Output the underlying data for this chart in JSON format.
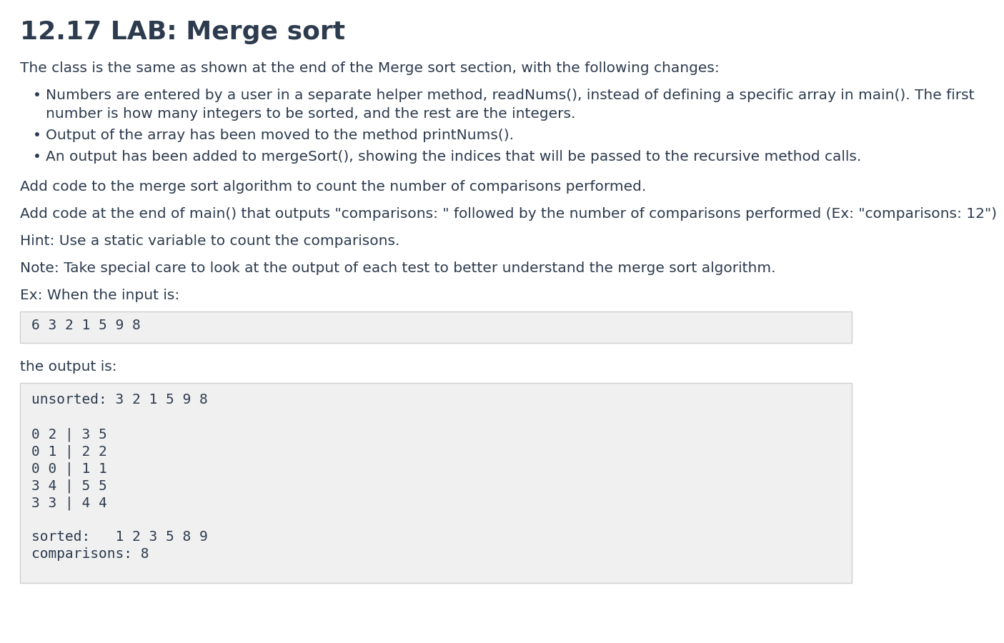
{
  "title": "12.17 LAB: Merge sort",
  "title_fontsize": 26,
  "title_color": "#2d3b4e",
  "title_bold": true,
  "bg_color": "#ffffff",
  "body_text_color": "#2d3b4e",
  "body_fontsize": 14.5,
  "body_font": "DejaVu Sans",
  "mono_font": "DejaVu Sans Mono",
  "paragraph1": "The class is the same as shown at the end of the Merge sort section, with the following changes:",
  "bullet1_line1": "Numbers are entered by a user in a separate helper method, readNums(), instead of defining a specific array in main(). The first",
  "bullet1_line2": "number is how many integers to be sorted, and the rest are the integers.",
  "bullet2": "Output of the array has been moved to the method printNums().",
  "bullet3": "An output has been added to mergeSort(), showing the indices that will be passed to the recursive method calls.",
  "paragraph2": "Add code to the merge sort algorithm to count the number of comparisons performed.",
  "paragraph3": "Add code at the end of main() that outputs \"comparisons: \" followed by the number of comparisons performed (Ex: \"comparisons: 12\")",
  "paragraph4": "Hint: Use a static variable to count the comparisons.",
  "paragraph5": "Note: Take special care to look at the output of each test to better understand the merge sort algorithm.",
  "ex_label": "Ex: When the input is:",
  "input_box_text": "6 3 2 1 5 9 8",
  "input_box_bg": "#f0f0f0",
  "input_box_border": "#d0d0d0",
  "output_label": "the output is:",
  "output_lines": [
    "unsorted: 3 2 1 5 9 8",
    "",
    "0 2 | 3 5",
    "0 1 | 2 2",
    "0 0 | 1 1",
    "3 4 | 5 5",
    "3 3 | 4 4",
    "",
    "sorted:   1 2 3 5 8 9",
    "comparisons: 8"
  ],
  "output_box_bg": "#f0f0f0",
  "output_box_border": "#d0d0d0",
  "mono_fontsize": 14.0
}
